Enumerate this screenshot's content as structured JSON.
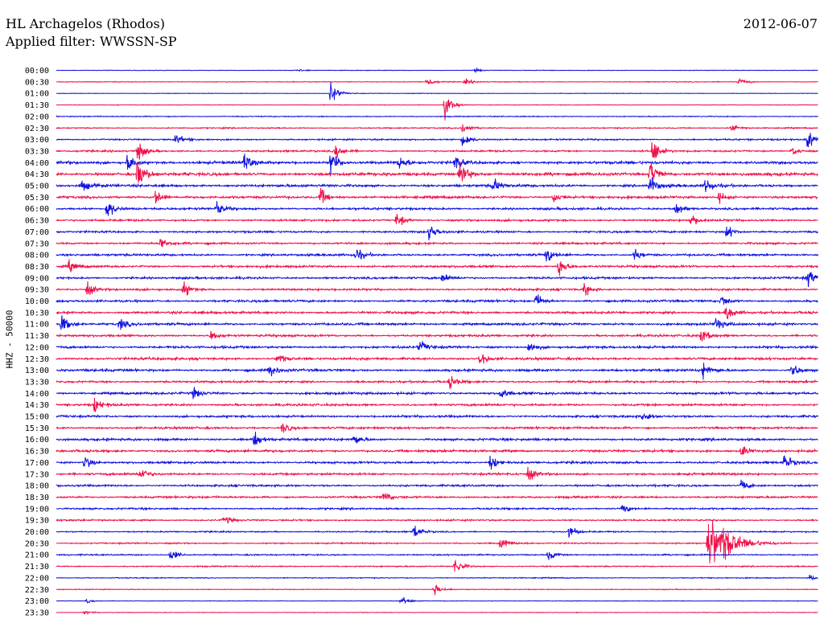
{
  "header": {
    "station": "HL Archagelos (Rhodos)",
    "filter": "Applied filter: WWSSN-SP",
    "date": "2012-06-07"
  },
  "chart_data": {
    "type": "line",
    "title": "HL Archagelos (Rhodos)",
    "subtitle": "Applied filter: WWSSN-SP",
    "ylabel": "HHZ - 50000",
    "row_labels": [
      "00:00",
      "00:30",
      "01:00",
      "01:30",
      "02:00",
      "02:30",
      "03:00",
      "03:30",
      "04:00",
      "04:30",
      "05:00",
      "05:30",
      "06:00",
      "06:30",
      "07:00",
      "07:30",
      "08:00",
      "08:30",
      "09:00",
      "09:30",
      "10:00",
      "10:30",
      "11:00",
      "11:30",
      "12:00",
      "12:30",
      "13:00",
      "13:30",
      "14:00",
      "14:30",
      "15:00",
      "15:30",
      "16:00",
      "16:30",
      "17:00",
      "17:30",
      "18:00",
      "18:30",
      "19:00",
      "19:30",
      "20:00",
      "20:30",
      "21:00",
      "21:30",
      "22:00",
      "22:30",
      "23:00",
      "23:30"
    ],
    "row_colors": [
      "#1010e0",
      "#f0104a"
    ],
    "row_minutes": 30,
    "noise_level": [
      0.3,
      0.4,
      0.3,
      0.3,
      0.5,
      0.6,
      0.8,
      0.9,
      1.4,
      1.5,
      1.3,
      1.2,
      1.1,
      1.0,
      1.0,
      1.0,
      1.1,
      1.1,
      1.1,
      1.0,
      1.1,
      1.2,
      1.2,
      1.1,
      1.2,
      1.2,
      1.2,
      1.1,
      1.2,
      1.1,
      1.1,
      1.1,
      1.2,
      1.2,
      1.1,
      1.1,
      1.0,
      1.0,
      0.9,
      0.8,
      0.7,
      0.7,
      0.7,
      0.6,
      0.5,
      0.4,
      0.3,
      0.3
    ],
    "events": [
      {
        "row": 0,
        "minute": 16.5,
        "amplitude": 2
      },
      {
        "row": 0,
        "minute": 9.5,
        "amplitude": 1.5
      },
      {
        "row": 1,
        "minute": 14.6,
        "amplitude": 5
      },
      {
        "row": 1,
        "minute": 16.1,
        "amplitude": 3
      },
      {
        "row": 1,
        "minute": 26.9,
        "amplitude": 4
      },
      {
        "row": 2,
        "minute": 10.8,
        "amplitude": 12
      },
      {
        "row": 3,
        "minute": 15.3,
        "amplitude": 14
      },
      {
        "row": 5,
        "minute": 16.0,
        "amplitude": 7
      },
      {
        "row": 5,
        "minute": 26.6,
        "amplitude": 5
      },
      {
        "row": 6,
        "minute": 4.7,
        "amplitude": 6
      },
      {
        "row": 6,
        "minute": 16.0,
        "amplitude": 10
      },
      {
        "row": 6,
        "minute": 29.6,
        "amplitude": 12
      },
      {
        "row": 7,
        "minute": 3.2,
        "amplitude": 12
      },
      {
        "row": 7,
        "minute": 11.0,
        "amplitude": 8
      },
      {
        "row": 7,
        "minute": 23.5,
        "amplitude": 14
      },
      {
        "row": 7,
        "minute": 29.0,
        "amplitude": 5
      },
      {
        "row": 8,
        "minute": 2.8,
        "amplitude": 11
      },
      {
        "row": 8,
        "minute": 7.4,
        "amplitude": 9
      },
      {
        "row": 8,
        "minute": 10.8,
        "amplitude": 13
      },
      {
        "row": 8,
        "minute": 13.5,
        "amplitude": 7
      },
      {
        "row": 8,
        "minute": 15.7,
        "amplitude": 8
      },
      {
        "row": 9,
        "minute": 3.2,
        "amplitude": 18
      },
      {
        "row": 9,
        "minute": 15.9,
        "amplitude": 18
      },
      {
        "row": 9,
        "minute": 23.4,
        "amplitude": 15
      },
      {
        "row": 10,
        "minute": 1.0,
        "amplitude": 6
      },
      {
        "row": 10,
        "minute": 17.2,
        "amplitude": 8
      },
      {
        "row": 10,
        "minute": 23.4,
        "amplitude": 11
      },
      {
        "row": 10,
        "minute": 25.6,
        "amplitude": 8
      },
      {
        "row": 11,
        "minute": 3.9,
        "amplitude": 10
      },
      {
        "row": 11,
        "minute": 10.4,
        "amplitude": 9
      },
      {
        "row": 11,
        "minute": 19.6,
        "amplitude": 6
      },
      {
        "row": 11,
        "minute": 26.1,
        "amplitude": 6
      },
      {
        "row": 12,
        "minute": 2.0,
        "amplitude": 12
      },
      {
        "row": 12,
        "minute": 6.3,
        "amplitude": 8
      },
      {
        "row": 12,
        "minute": 24.4,
        "amplitude": 8
      },
      {
        "row": 13,
        "minute": 13.4,
        "amplitude": 8
      },
      {
        "row": 13,
        "minute": 25.0,
        "amplitude": 7
      },
      {
        "row": 14,
        "minute": 14.7,
        "amplitude": 9
      },
      {
        "row": 14,
        "minute": 26.4,
        "amplitude": 8
      },
      {
        "row": 15,
        "minute": 4.1,
        "amplitude": 6
      },
      {
        "row": 16,
        "minute": 11.8,
        "amplitude": 8
      },
      {
        "row": 16,
        "minute": 19.3,
        "amplitude": 8
      },
      {
        "row": 16,
        "minute": 22.8,
        "amplitude": 7
      },
      {
        "row": 17,
        "minute": 19.8,
        "amplitude": 12
      },
      {
        "row": 17,
        "minute": 0.5,
        "amplitude": 6
      },
      {
        "row": 18,
        "minute": 15.2,
        "amplitude": 6
      },
      {
        "row": 18,
        "minute": 29.6,
        "amplitude": 10
      },
      {
        "row": 19,
        "minute": 1.2,
        "amplitude": 8
      },
      {
        "row": 19,
        "minute": 5.0,
        "amplitude": 9
      },
      {
        "row": 19,
        "minute": 20.8,
        "amplitude": 7
      },
      {
        "row": 20,
        "minute": 18.9,
        "amplitude": 8
      },
      {
        "row": 20,
        "minute": 26.2,
        "amplitude": 7
      },
      {
        "row": 21,
        "minute": 26.4,
        "amplitude": 10
      },
      {
        "row": 22,
        "minute": 0.2,
        "amplitude": 10
      },
      {
        "row": 22,
        "minute": 2.5,
        "amplitude": 6
      },
      {
        "row": 22,
        "minute": 26.0,
        "amplitude": 7
      },
      {
        "row": 23,
        "minute": 6.1,
        "amplitude": 6
      },
      {
        "row": 23,
        "minute": 25.4,
        "amplitude": 8
      },
      {
        "row": 24,
        "minute": 14.3,
        "amplitude": 7
      },
      {
        "row": 24,
        "minute": 18.6,
        "amplitude": 7
      },
      {
        "row": 25,
        "minute": 16.7,
        "amplitude": 9
      },
      {
        "row": 25,
        "minute": 8.7,
        "amplitude": 7
      },
      {
        "row": 26,
        "minute": 8.4,
        "amplitude": 8
      },
      {
        "row": 26,
        "minute": 25.5,
        "amplitude": 8
      },
      {
        "row": 26,
        "minute": 29.0,
        "amplitude": 7
      },
      {
        "row": 27,
        "minute": 15.5,
        "amplitude": 7
      },
      {
        "row": 28,
        "minute": 5.4,
        "amplitude": 6
      },
      {
        "row": 28,
        "minute": 17.5,
        "amplitude": 7
      },
      {
        "row": 29,
        "minute": 1.5,
        "amplitude": 8
      },
      {
        "row": 30,
        "minute": 23.1,
        "amplitude": 6
      },
      {
        "row": 31,
        "minute": 8.9,
        "amplitude": 7
      },
      {
        "row": 32,
        "minute": 7.8,
        "amplitude": 8
      },
      {
        "row": 32,
        "minute": 11.7,
        "amplitude": 6
      },
      {
        "row": 33,
        "minute": 27.0,
        "amplitude": 7
      },
      {
        "row": 34,
        "minute": 1.1,
        "amplitude": 8
      },
      {
        "row": 34,
        "minute": 17.1,
        "amplitude": 8
      },
      {
        "row": 34,
        "minute": 28.7,
        "amplitude": 9
      },
      {
        "row": 35,
        "minute": 3.3,
        "amplitude": 7
      },
      {
        "row": 35,
        "minute": 18.6,
        "amplitude": 7
      },
      {
        "row": 36,
        "minute": 27.0,
        "amplitude": 7
      },
      {
        "row": 37,
        "minute": 12.9,
        "amplitude": 6
      },
      {
        "row": 38,
        "minute": 22.3,
        "amplitude": 6
      },
      {
        "row": 39,
        "minute": 6.6,
        "amplitude": 5
      },
      {
        "row": 40,
        "minute": 14.1,
        "amplitude": 8
      },
      {
        "row": 40,
        "minute": 20.2,
        "amplitude": 7
      },
      {
        "row": 41,
        "minute": 17.5,
        "amplitude": 8
      },
      {
        "row": 41,
        "minute": 25.7,
        "amplitude": 13
      },
      {
        "row": 42,
        "minute": 4.5,
        "amplitude": 7
      },
      {
        "row": 42,
        "minute": 19.4,
        "amplitude": 6
      },
      {
        "row": 43,
        "minute": 15.7,
        "amplitude": 10
      },
      {
        "row": 44,
        "minute": 29.7,
        "amplitude": 3
      },
      {
        "row": 45,
        "minute": 14.9,
        "amplitude": 6
      },
      {
        "row": 46,
        "minute": 13.6,
        "amplitude": 5
      },
      {
        "row": 46,
        "minute": 1.2,
        "amplitude": 2
      },
      {
        "row": 47,
        "minute": 1.1,
        "amplitude": 2
      }
    ],
    "earthquake": {
      "row": 41,
      "minute_start": 25.6,
      "minute_end": 27.5,
      "amplitude": 16
    }
  }
}
